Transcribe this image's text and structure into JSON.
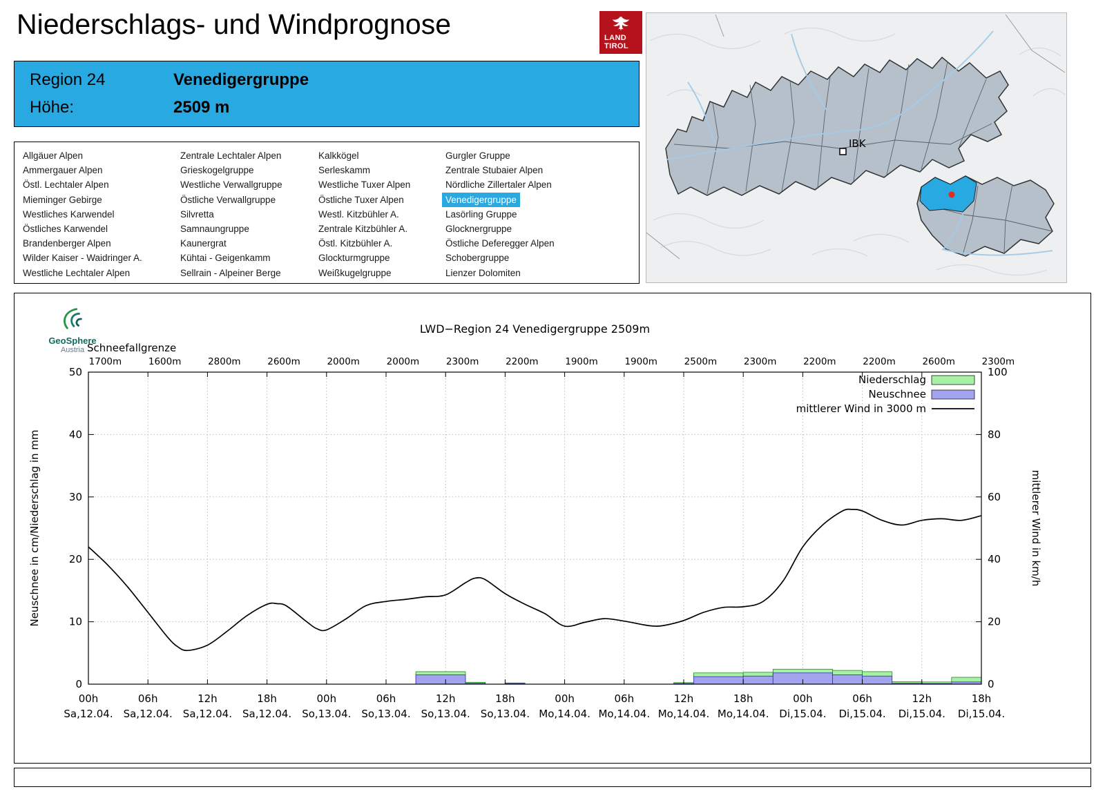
{
  "header": {
    "title": "Niederschlags- und Windprognose",
    "logo": {
      "line1": "LAND",
      "line2": "TIROL"
    }
  },
  "region_box": {
    "region_label": "Region 24",
    "region_name": "Venedigergruppe",
    "altitude_label": "Höhe:",
    "altitude_value": "2509 m"
  },
  "region_list": {
    "selected": "Venedigergruppe",
    "columns": [
      [
        "Allgäuer Alpen",
        "Ammergauer Alpen",
        "Östl. Lechtaler Alpen",
        "Mieminger Gebirge",
        "Westliches Karwendel",
        "Östliches Karwendel",
        "Brandenberger Alpen",
        "Wilder Kaiser - Waidringer A.",
        "Westliche Lechtaler Alpen"
      ],
      [
        "Zentrale Lechtaler Alpen",
        "Grieskogelgruppe",
        "Westliche Verwallgruppe",
        "Östliche Verwallgruppe",
        "Silvretta",
        "Samnaungruppe",
        "Kaunergrat",
        "Kühtai - Geigenkamm",
        "Sellrain - Alpeiner Berge"
      ],
      [
        "Kalkkögel",
        "Serleskamm",
        "Westliche Tuxer Alpen",
        "Östliche Tuxer Alpen",
        "Westl. Kitzbühler A.",
        "Zentrale Kitzbühler A.",
        "Östl. Kitzbühler A.",
        "Glockturmgruppe",
        "Weißkugelgruppe"
      ],
      [
        "Gurgler Gruppe",
        "Zentrale Stubaier Alpen",
        "Nördliche Zillertaler Alpen",
        "Venedigergruppe",
        "Lasörling Gruppe",
        "Glocknergruppe",
        "Östliche Deferegger Alpen",
        "Schobergruppe",
        "Lienzer Dolomiten"
      ]
    ]
  },
  "map": {
    "city_label": "IBK"
  },
  "geosphere": {
    "name": "GeoSphere",
    "country": "Austria"
  },
  "colors": {
    "accent_blue": "#29a9e2",
    "logo_red": "#b5121b"
  },
  "chart_data": {
    "type": "bar+line",
    "title": "LWD−Region 24 Venedigergruppe 2509m",
    "snowline_label": "Schneefallgrenze",
    "snowline_values": [
      "1700m",
      "1600m",
      "2800m",
      "2600m",
      "2000m",
      "2000m",
      "2300m",
      "2200m",
      "1900m",
      "1900m",
      "2500m",
      "2300m",
      "2200m",
      "2200m",
      "2600m",
      "2300m"
    ],
    "ylabel_left": "Neuschnee in cm/Niederschlag in mm",
    "ylabel_right": "mittlerer Wind in km/h",
    "ylim_left": [
      0,
      50
    ],
    "ylim_right": [
      0,
      100
    ],
    "x_range_hours": [
      0,
      90
    ],
    "grid": true,
    "legend_position": "top-right",
    "x_ticks": [
      {
        "hour": "00h",
        "day": "Sa,12.04."
      },
      {
        "hour": "06h",
        "day": "Sa,12.04."
      },
      {
        "hour": "12h",
        "day": "Sa,12.04."
      },
      {
        "hour": "18h",
        "day": "Sa,12.04."
      },
      {
        "hour": "00h",
        "day": "So,13.04."
      },
      {
        "hour": "06h",
        "day": "So,13.04."
      },
      {
        "hour": "12h",
        "day": "So,13.04."
      },
      {
        "hour": "18h",
        "day": "So,13.04."
      },
      {
        "hour": "00h",
        "day": "Mo,14.04."
      },
      {
        "hour": "06h",
        "day": "Mo,14.04."
      },
      {
        "hour": "12h",
        "day": "Mo,14.04."
      },
      {
        "hour": "18h",
        "day": "Mo,14.04."
      },
      {
        "hour": "00h",
        "day": "Di,15.04."
      },
      {
        "hour": "06h",
        "day": "Di,15.04."
      },
      {
        "hour": "12h",
        "day": "Di,15.04."
      },
      {
        "hour": "18h",
        "day": "Di,15.04."
      }
    ],
    "legend": [
      {
        "label": "Niederschlag",
        "type": "box",
        "fill": "#a6f1a6",
        "stroke": "#1f8a1f"
      },
      {
        "label": "Neuschnee",
        "type": "box",
        "fill": "#a3a3f0",
        "stroke": "#3030a8"
      },
      {
        "label": "mittlerer Wind in 3000 m",
        "type": "line",
        "color": "#000000"
      }
    ],
    "wind_series": {
      "name": "mittlerer Wind in 3000 m",
      "axis": "right",
      "units": "km/h",
      "points_kmh": [
        [
          0,
          44
        ],
        [
          2,
          38
        ],
        [
          4,
          31
        ],
        [
          6,
          23
        ],
        [
          8,
          15
        ],
        [
          9,
          12
        ],
        [
          10,
          10.8
        ],
        [
          12,
          12.5
        ],
        [
          14,
          17
        ],
        [
          16,
          22
        ],
        [
          18,
          25.6
        ],
        [
          19,
          25.8
        ],
        [
          20,
          25
        ],
        [
          22,
          20
        ],
        [
          23,
          17.8
        ],
        [
          24,
          17.4
        ],
        [
          26,
          21
        ],
        [
          28,
          25.2
        ],
        [
          30,
          26.5
        ],
        [
          32,
          27.2
        ],
        [
          34,
          28
        ],
        [
          36,
          28.6
        ],
        [
          38,
          32.5
        ],
        [
          39,
          34
        ],
        [
          40,
          33.5
        ],
        [
          42,
          29
        ],
        [
          44,
          25.6
        ],
        [
          46,
          22.6
        ],
        [
          48,
          18.6
        ],
        [
          50,
          19.8
        ],
        [
          52,
          21
        ],
        [
          54,
          20.2
        ],
        [
          56,
          19
        ],
        [
          57,
          18.6
        ],
        [
          58,
          18.8
        ],
        [
          60,
          20.4
        ],
        [
          62,
          23
        ],
        [
          64,
          24.6
        ],
        [
          66,
          24.8
        ],
        [
          68,
          26.5
        ],
        [
          70,
          33
        ],
        [
          72,
          44
        ],
        [
          74,
          51
        ],
        [
          76,
          55.5
        ],
        [
          77,
          56
        ],
        [
          78,
          55.5
        ],
        [
          80,
          52.5
        ],
        [
          82,
          51
        ],
        [
          84,
          52.5
        ],
        [
          86,
          53
        ],
        [
          88,
          52.5
        ],
        [
          90,
          54
        ]
      ]
    },
    "bars": [
      {
        "start": 33,
        "end": 38,
        "niederschlag_mm": 2.0,
        "neuschnee_cm": 1.5
      },
      {
        "start": 38,
        "end": 40,
        "niederschlag_mm": 0.3,
        "neuschnee_cm": 0.15
      },
      {
        "start": 42,
        "end": 44,
        "niederschlag_mm": 0.2,
        "neuschnee_cm": 0.1
      },
      {
        "start": 59,
        "end": 61,
        "niederschlag_mm": 0.25,
        "neuschnee_cm": 0.1
      },
      {
        "start": 61,
        "end": 66,
        "niederschlag_mm": 1.8,
        "neuschnee_cm": 1.2
      },
      {
        "start": 66,
        "end": 69,
        "niederschlag_mm": 1.9,
        "neuschnee_cm": 1.3
      },
      {
        "start": 69,
        "end": 75,
        "niederschlag_mm": 2.4,
        "neuschnee_cm": 1.8
      },
      {
        "start": 75,
        "end": 78,
        "niederschlag_mm": 2.2,
        "neuschnee_cm": 1.5
      },
      {
        "start": 78,
        "end": 81,
        "niederschlag_mm": 2.0,
        "neuschnee_cm": 1.3
      },
      {
        "start": 81,
        "end": 84,
        "niederschlag_mm": 0.4,
        "neuschnee_cm": 0.15
      },
      {
        "start": 84,
        "end": 87,
        "niederschlag_mm": 0.35,
        "neuschnee_cm": 0.1
      },
      {
        "start": 87,
        "end": 90,
        "niederschlag_mm": 1.1,
        "neuschnee_cm": 0.35
      }
    ]
  }
}
